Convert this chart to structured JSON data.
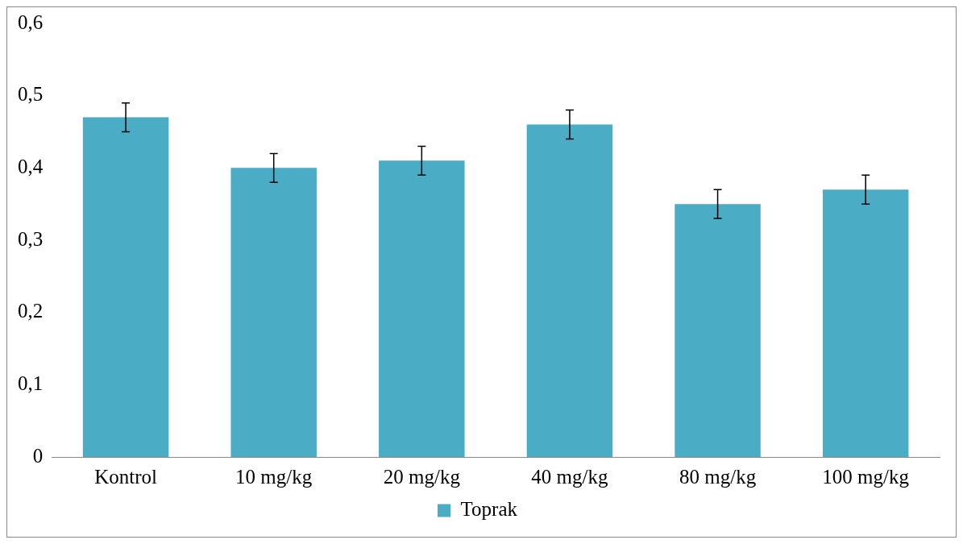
{
  "chart_data": {
    "type": "bar",
    "categories": [
      "Kontrol",
      "10 mg/kg",
      "20 mg/kg",
      "40 mg/kg",
      "80 mg/kg",
      "100 mg/kg"
    ],
    "series": [
      {
        "name": "Toprak",
        "color": "#4bacc6",
        "values": [
          0.47,
          0.4,
          0.41,
          0.46,
          0.35,
          0.37
        ],
        "errors": [
          0.02,
          0.02,
          0.02,
          0.02,
          0.02,
          0.02
        ]
      }
    ],
    "ylim": [
      0,
      0.6
    ],
    "yticks": [
      {
        "value": 0,
        "label": "0"
      },
      {
        "value": 0.1,
        "label": "0,1"
      },
      {
        "value": 0.2,
        "label": "0,2"
      },
      {
        "value": 0.3,
        "label": "0,3"
      },
      {
        "value": 0.4,
        "label": "0,4"
      },
      {
        "value": 0.5,
        "label": "0,5"
      },
      {
        "value": 0.6,
        "label": "0,6"
      }
    ],
    "legend": "bottom"
  }
}
